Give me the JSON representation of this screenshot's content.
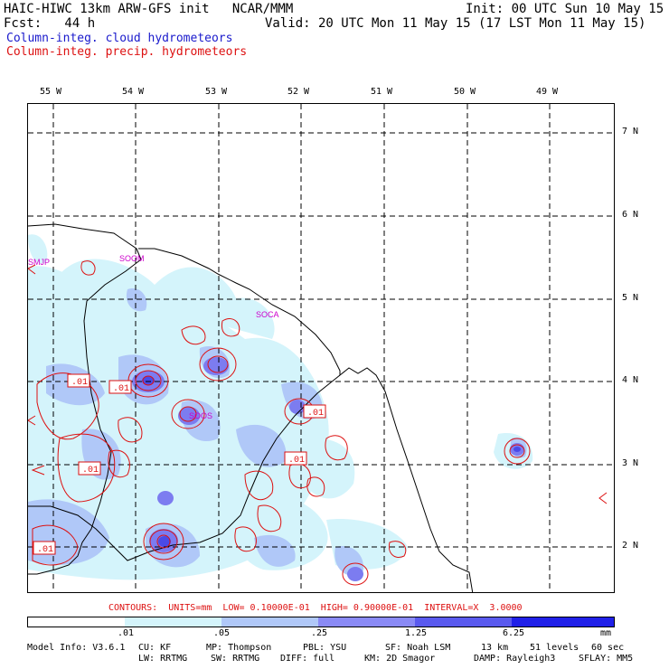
{
  "header": {
    "title": "HAIC-HIWC 13km ARW-GFS init   NCAR/MMM",
    "init": "Init: 00 UTC Sun 10 May 15",
    "fcst": "Fcst:   44 h",
    "valid": "Valid: 20 UTC Mon 11 May 15 (17 LST Mon 11 May 15)",
    "legend_cloud": "Column-integ. cloud hydrometeors",
    "legend_precip": "Column-integ. precip. hydrometeors"
  },
  "axes": {
    "lon_labels": [
      "55 W",
      "54 W",
      "53 W",
      "52 W",
      "51 W",
      "50 W",
      "49 W"
    ],
    "lat_labels": [
      "7 N",
      "6 N",
      "5 N",
      "4 N",
      "3 N",
      "2 N"
    ]
  },
  "stations": [
    "SMJP",
    "SOOM",
    "SOCA",
    "SOOS"
  ],
  "contour_labels": [
    ".01",
    ".01",
    ".01",
    ".01",
    ".01",
    ".01"
  ],
  "contours_line": "CONTOURS:  UNITS=mm  LOW= 0.10000E-01  HIGH= 0.90000E-01  INTERVAL=X  3.0000",
  "colorbar": {
    "ticks": [
      ".01",
      ".05",
      ".25",
      "1.25",
      "6.25"
    ],
    "unit": "mm",
    "colors": [
      "#ffffff",
      "#d4f4fb",
      "#b0c8f8",
      "#8a8af5",
      "#5a5aee",
      "#2020e8"
    ]
  },
  "footer": {
    "model_info": "Model Info: V3.6.1",
    "cu": "CU: KF",
    "mp": "MP: Thompson",
    "pbl": "PBL: YSU",
    "sf": "SF: Noah LSM",
    "res": "13 km",
    "levels": "51 levels",
    "dt": "60 sec",
    "lw": "LW: RRTMG",
    "sw": "SW: RRTMG",
    "diff": "DIFF: full",
    "km": "KM: 2D Smagor",
    "damp": "DAMP: Rayleigh3",
    "sflay": "SFLAY: MM5"
  }
}
